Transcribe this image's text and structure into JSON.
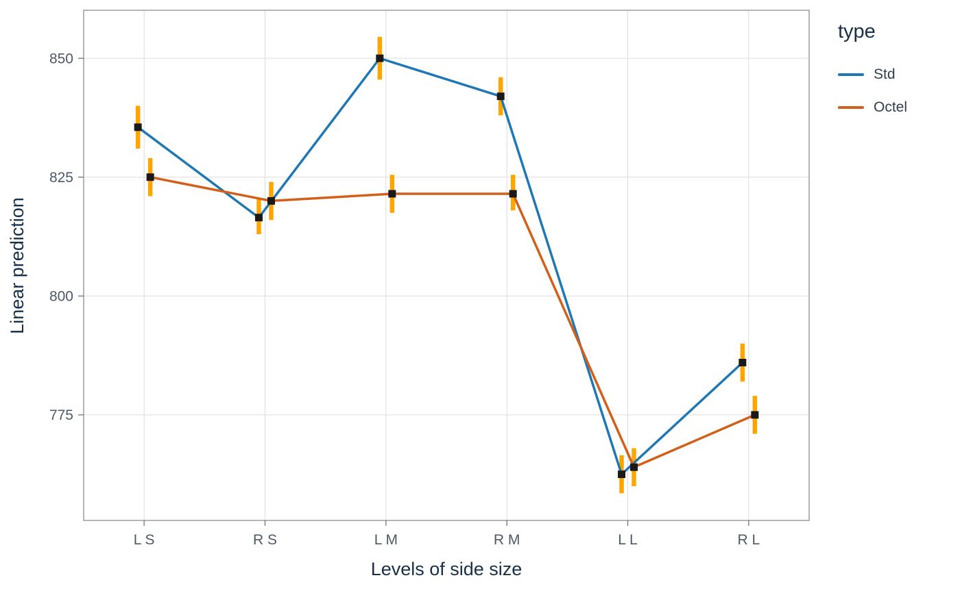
{
  "chart_data": {
    "type": "line",
    "title": "",
    "xlabel": "Levels of side size",
    "ylabel": "Linear prediction",
    "categories": [
      "L S",
      "R S",
      "L M",
      "R M",
      "L L",
      "R L"
    ],
    "yticks": [
      775,
      800,
      825,
      850
    ],
    "ylim": [
      752.8,
      860.1
    ],
    "grid": true,
    "legend": {
      "title": "type",
      "position": "right-top"
    },
    "marker": "square",
    "marker_color": "#1a1a1a",
    "error_bar_color": "#ffa500",
    "series": [
      {
        "name": "Std",
        "color": "#1f77b4",
        "values": [
          835.5,
          816.5,
          850.0,
          842.0,
          762.5,
          786.0
        ],
        "ci_low": [
          831.0,
          813.0,
          845.5,
          838.0,
          758.5,
          782.0
        ],
        "ci_high": [
          840.0,
          820.5,
          854.5,
          846.0,
          766.5,
          790.0
        ]
      },
      {
        "name": "Octel",
        "color": "#d2601a",
        "values": [
          825.0,
          820.0,
          821.5,
          821.5,
          764.0,
          775.0
        ],
        "ci_low": [
          821.0,
          816.0,
          817.5,
          818.0,
          760.0,
          771.0
        ],
        "ci_high": [
          829.0,
          824.0,
          825.5,
          825.5,
          768.0,
          779.0
        ]
      }
    ]
  }
}
